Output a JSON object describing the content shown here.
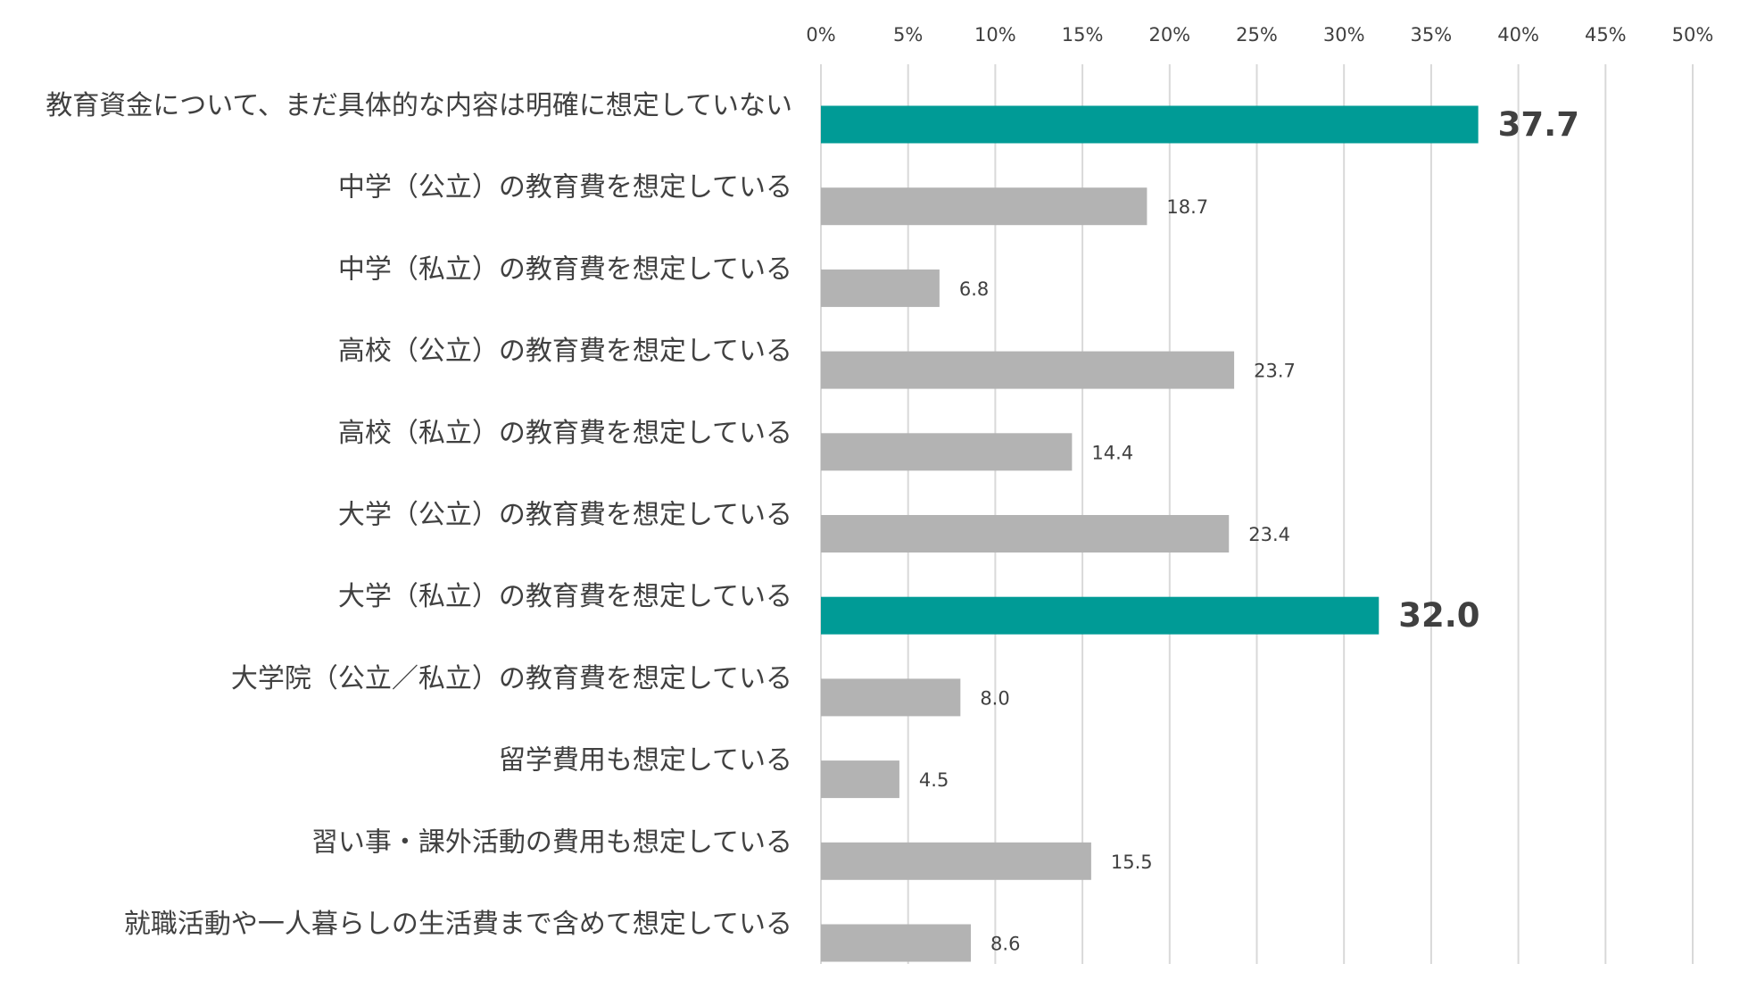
{
  "chart_data": {
    "type": "bar",
    "orientation": "horizontal",
    "title": "",
    "xlabel": "",
    "ylabel": "",
    "xlim": [
      0,
      50
    ],
    "x_ticks": [
      0,
      5,
      10,
      15,
      20,
      25,
      30,
      35,
      40,
      45,
      50
    ],
    "x_tick_labels": [
      "0%",
      "5%",
      "10%",
      "15%",
      "20%",
      "25%",
      "30%",
      "35%",
      "40%",
      "45%",
      "50%"
    ],
    "x_axis_position": "top",
    "grid": true,
    "legend": "none",
    "categories": [
      "教育資金について、まだ具体的な内容は明確に想定していない",
      "中学（公立）の教育費を想定している",
      "中学（私立）の教育費を想定している",
      "高校（公立）の教育費を想定している",
      "高校（私立）の教育費を想定している",
      "大学（公立）の教育費を想定している",
      "大学（私立）の教育費を想定している",
      "大学院（公立／私立）の教育費を想定している",
      "留学費用も想定している",
      "習い事・課外活動の費用も想定している",
      "就職活動や一人暮らしの生活費まで含めて想定している"
    ],
    "values": [
      37.7,
      18.7,
      6.8,
      23.7,
      14.4,
      23.4,
      32.0,
      8.0,
      4.5,
      15.5,
      8.6
    ],
    "value_labels": [
      "37.7",
      "18.7",
      "6.8",
      "23.7",
      "14.4",
      "23.4",
      "32.0",
      "8.0",
      "4.5",
      "15.5",
      "8.6"
    ],
    "highlighted": [
      true,
      false,
      false,
      false,
      false,
      false,
      true,
      false,
      false,
      false,
      false
    ],
    "colors": {
      "bar": "#b3b3b3",
      "highlight": "#009b96",
      "grid": "#d9d9d9",
      "text": "#404040"
    }
  }
}
